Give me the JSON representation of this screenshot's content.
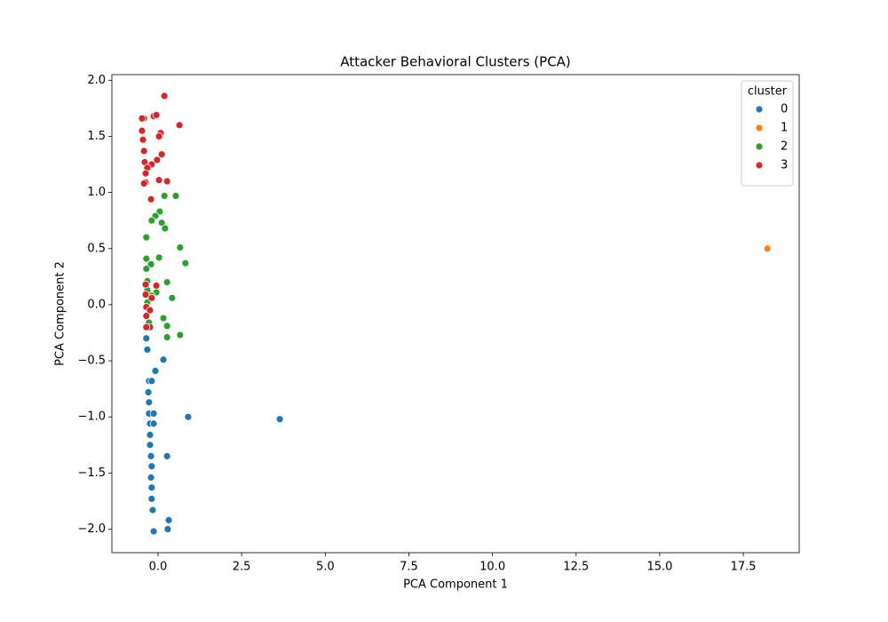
{
  "chart_data": {
    "type": "scatter",
    "title": "Attacker Behavioral Clusters (PCA)",
    "x_label": "PCA Component 1",
    "y_label": "PCA Component 2",
    "legend_title": "cluster",
    "legend_loc": "upper right",
    "xlim": [
      -1.38,
      19.17
    ],
    "ylim": [
      -2.21,
      2.05
    ],
    "xticks": [
      {
        "value": 0,
        "label": "0.0"
      },
      2.5,
      {
        "value": 5,
        "label": "5.0"
      },
      7.5,
      {
        "value": 10,
        "label": "10.0"
      },
      12.5,
      {
        "value": 15,
        "label": "15.0"
      },
      17.5
    ],
    "yticks": [
      {
        "value": -2,
        "label": "−2.0"
      },
      {
        "value": -1.5,
        "label": "−1.5"
      },
      {
        "value": -1,
        "label": "−1.0"
      },
      {
        "value": -0.5,
        "label": "−0.5"
      },
      {
        "value": 0,
        "label": "0.0"
      },
      0.5,
      {
        "value": 1,
        "label": "1.0"
      },
      1.5,
      {
        "value": 2,
        "label": "2.0"
      }
    ],
    "series": [
      {
        "name": "0",
        "color": "#1f77b4",
        "x": [
          -0.35,
          -0.32,
          0.16,
          -0.08,
          -0.27,
          -0.19,
          -0.29,
          -0.27,
          -0.27,
          -0.13,
          0.9,
          3.64,
          -0.24,
          -0.13,
          -0.24,
          -0.24,
          -0.21,
          0.27,
          -0.19,
          -0.21,
          -0.19,
          -0.19,
          -0.16,
          0.32,
          0.29,
          -0.13
        ],
        "values": [
          -0.3,
          -0.4,
          -0.49,
          -0.59,
          -0.68,
          -0.68,
          -0.78,
          -0.87,
          -0.97,
          -0.97,
          -1.0,
          -1.02,
          -1.06,
          -1.06,
          -1.16,
          -1.25,
          -1.35,
          -1.35,
          -1.44,
          -1.54,
          -1.63,
          -1.73,
          -1.83,
          -1.92,
          -2.0,
          -2.02
        ]
      },
      {
        "name": "1",
        "color": "#ff7f0e",
        "x": [
          18.22
        ],
        "values": [
          0.5
        ]
      },
      {
        "name": "2",
        "color": "#2ca02c",
        "x": [
          0.53,
          0.19,
          0.05,
          -0.08,
          -0.19,
          0.11,
          0.21,
          -0.35,
          0.66,
          -0.35,
          0.03,
          0.82,
          -0.21,
          -0.35,
          -0.32,
          0.27,
          -0.32,
          -0.05,
          -0.19,
          0.42,
          -0.32,
          0.16,
          -0.27,
          0.27,
          0.66,
          0.27
        ],
        "values": [
          0.97,
          0.97,
          0.83,
          0.79,
          0.75,
          0.73,
          0.68,
          0.6,
          0.51,
          0.41,
          0.42,
          0.37,
          0.36,
          0.32,
          0.21,
          0.2,
          0.13,
          0.11,
          0.08,
          0.06,
          0.02,
          -0.12,
          -0.16,
          -0.19,
          -0.27,
          -0.29
        ]
      },
      {
        "name": "3",
        "color": "#d62728",
        "x": [
          0.19,
          -0.13,
          -0.05,
          -0.42,
          -0.48,
          0.64,
          -0.48,
          0.08,
          0.03,
          -0.45,
          -0.42,
          0.11,
          -0.03,
          -0.4,
          -0.19,
          -0.32,
          -0.37,
          0.03,
          0.27,
          -0.37,
          -0.42,
          -0.21,
          -0.37,
          -0.05,
          -0.37,
          -0.19,
          -0.35,
          -0.24,
          -0.35,
          -0.24,
          -0.35
        ],
        "values": [
          1.86,
          1.68,
          1.69,
          1.66,
          1.66,
          1.6,
          1.55,
          1.53,
          1.5,
          1.47,
          1.37,
          1.34,
          1.29,
          1.27,
          1.25,
          1.22,
          1.17,
          1.11,
          1.1,
          1.09,
          1.08,
          0.94,
          0.18,
          0.17,
          0.09,
          0.06,
          -0.02,
          -0.05,
          -0.1,
          -0.2,
          -0.2
        ]
      }
    ]
  }
}
